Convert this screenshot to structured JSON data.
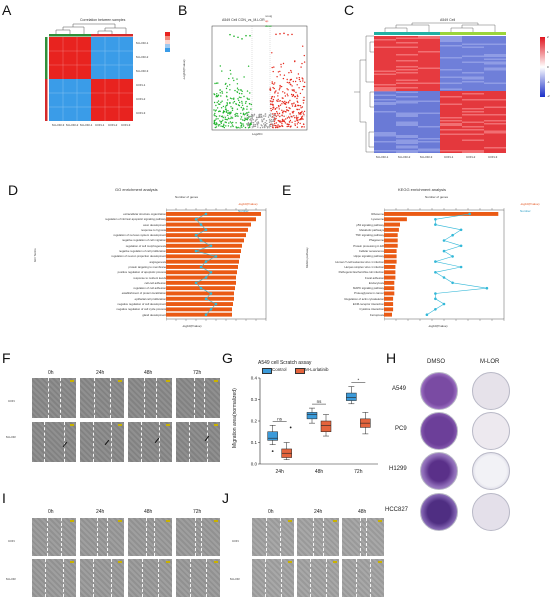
{
  "figure": {
    "panel_letters": [
      "A",
      "B",
      "C",
      "D",
      "E",
      "F",
      "G",
      "H",
      "I",
      "J"
    ]
  },
  "panelA": {
    "title": "Correlation between samples",
    "rows": [
      "M-LOR-1",
      "M-LOR-2",
      "M-LOR-3",
      "CON-1",
      "CON-2",
      "CON-3"
    ],
    "cols": [
      "M-LOR-3",
      "M-LOR-2",
      "M-LOR-1",
      "CON-1",
      "CON-2",
      "CON-3"
    ],
    "colors": {
      "high": "#e8231f",
      "low": "#3a9ce8",
      "bar_green": "#2f8f3a",
      "bar_red": "#d52a2a"
    }
  },
  "panelB": {
    "title": "A549 Cell CON_vs_M-LOR",
    "xlabel": "Log2FC",
    "ylabel": "-Log10(Pvalue)",
    "legend": [
      "nosig",
      "up",
      "down"
    ],
    "colors": {
      "up": "#e52b1f",
      "down": "#1fb32b",
      "nosig": "#9a9a9a"
    }
  },
  "panelC": {
    "title": "A549 Cell",
    "samples": [
      "M-LOR-1",
      "M-LOR-2",
      "M-LOR-3",
      "CON-1",
      "CON-2",
      "CON-3"
    ],
    "scale": [
      "2",
      "1",
      "0",
      "-1",
      "-2"
    ],
    "colors": {
      "high": "#e0141f",
      "low": "#1b2fc9",
      "mid": "#ffffff"
    }
  },
  "panelD": {
    "title": "GO enrichment analysis",
    "top_axis_label": "Number of genes",
    "xlabel": "-log10(Pvalue)",
    "ylabel": "GO Terms",
    "legend": [
      "-log10(Pvalue)",
      "Number"
    ],
    "terms": [
      "extracellular structure organization",
      "regulation of intrinsic apoptotic signaling pathway",
      "axon development",
      "response to hypoxia",
      "regulation of nervous system development",
      "negative regulation of cell migration",
      "regulation of cell morphogenesis",
      "negative regulation of cell proliferation",
      "regulation of neuron projection development",
      "angiogenesis",
      "protein targeting to membrane",
      "positive regulation of apoptotic process",
      "response to nutrient levels",
      "cell-cell adhesion",
      "regulation of cell adhesion",
      "establishment of protein localization",
      "epithelial cell proliferation",
      "negative regulation of cell development",
      "negative regulation of cell cycle process",
      "gland development"
    ],
    "chart_data": {
      "type": "bar",
      "bars": [
        95,
        90,
        85,
        82,
        80,
        78,
        76,
        75,
        74,
        73,
        72,
        71,
        70,
        70,
        69,
        68,
        68,
        67,
        66,
        66
      ],
      "line": [
        8,
        6,
        7,
        8,
        6,
        7,
        9,
        6,
        10,
        8,
        7,
        9,
        8,
        6,
        7,
        9,
        8,
        10,
        9,
        8
      ]
    }
  },
  "panelE": {
    "title": "KEGG enrichment analysis",
    "top_axis_label": "Number of genes",
    "xlabel": "-log10(Pvalue)",
    "ylabel": "KEGG pathway",
    "legend": [
      "-log10(Pvalue)",
      "Number"
    ],
    "terms": [
      "Ribosome",
      "Lysosome",
      "p53 signaling pathway",
      "Metabolic pathways",
      "TNF signaling pathway",
      "Phagosome",
      "Protein processing in ER",
      "Cellular senescence",
      "Hippo signaling pathway",
      "Human T-cell leukemia virus 1 infection",
      "Herpes simplex virus 1 infection",
      "Pathogenic Escherichia coli infection",
      "Focal adhesion",
      "Endocytosis",
      "MAPK signaling pathway",
      "Proteoglycans in cancer",
      "Regulation of actin cytoskeleton",
      "ECM-receptor interaction",
      "Cytokine interaction",
      "Ferroptosis"
    ],
    "chart_data": {
      "type": "bar",
      "bars": [
        100,
        20,
        14,
        13,
        12,
        12,
        12,
        11,
        11,
        11,
        10,
        10,
        10,
        9,
        9,
        9,
        8,
        8,
        8,
        7
      ],
      "line": [
        10,
        6,
        6,
        9,
        8,
        7,
        9,
        7,
        8,
        6,
        9,
        6,
        7,
        8,
        12,
        6,
        6,
        7,
        6,
        5
      ]
    }
  },
  "panelF": {
    "times": [
      "0h",
      "24h",
      "48h",
      "72h"
    ],
    "rows": [
      "CON",
      "M-LOR"
    ]
  },
  "panelG": {
    "title": "A549 cell Scratch assay",
    "ylabel": "Migration area(normalized)",
    "legend": [
      "Control",
      "M-Lorlatinib"
    ],
    "significance": [
      "ns",
      "ns",
      "*"
    ],
    "colors": {
      "control": "#3b9ad9",
      "treat": "#e4643d"
    },
    "chart_data": {
      "type": "box",
      "categories": [
        "24h",
        "48h",
        "72h"
      ],
      "yticks": [
        "0.0",
        "0.1",
        "0.2",
        "0.3",
        "0.4"
      ],
      "ylim": [
        0,
        0.4
      ],
      "series": [
        {
          "name": "Control",
          "boxes": [
            {
              "min": 0.09,
              "q1": 0.11,
              "med": 0.12,
              "q3": 0.15,
              "max": 0.18
            },
            {
              "min": 0.19,
              "q1": 0.21,
              "med": 0.23,
              "q3": 0.24,
              "max": 0.26
            },
            {
              "min": 0.28,
              "q1": 0.295,
              "med": 0.31,
              "q3": 0.33,
              "max": 0.36
            }
          ]
        },
        {
          "name": "M-Lorlatinib",
          "boxes": [
            {
              "min": 0.02,
              "q1": 0.03,
              "med": 0.05,
              "q3": 0.07,
              "max": 0.1
            },
            {
              "min": 0.13,
              "q1": 0.15,
              "med": 0.18,
              "q3": 0.2,
              "max": 0.23
            },
            {
              "min": 0.14,
              "q1": 0.17,
              "med": 0.19,
              "q3": 0.21,
              "max": 0.24
            }
          ]
        }
      ]
    }
  },
  "panelH": {
    "cols": [
      "DMSO",
      "M-LOR"
    ],
    "rows": [
      "A549",
      "PC9",
      "H1299",
      "HCC827"
    ]
  },
  "panelI": {
    "times": [
      "0h",
      "24h",
      "48h",
      "72h"
    ],
    "rows": [
      "CON",
      "M-LOR"
    ]
  },
  "panelJ": {
    "times": [
      "0h",
      "24h",
      "48h"
    ],
    "rows": [
      "CON",
      "M-LOR"
    ]
  }
}
